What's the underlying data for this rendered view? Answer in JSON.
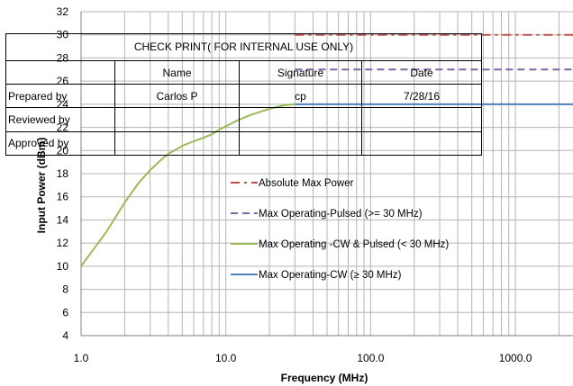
{
  "chart_data": {
    "type": "line",
    "xlabel": "Frequency (MHz)",
    "ylabel": "Input Power (dBm)",
    "x_scale": "log",
    "xlim": [
      1,
      2500
    ],
    "ylim": [
      4,
      32
    ],
    "x_ticks": [
      "1.0",
      "10.0",
      "100.0",
      "1000.0"
    ],
    "y_ticks": [
      "4",
      "6",
      "8",
      "10",
      "12",
      "14",
      "16",
      "18",
      "20",
      "22",
      "24",
      "26",
      "28",
      "30",
      "32"
    ],
    "grid": true,
    "legend_position": "center-right",
    "series": [
      {
        "name": "Absolute Max Power",
        "color": "#C0504D",
        "style": "dash-dot",
        "x": [
          30,
          2500
        ],
        "y": [
          30,
          30
        ]
      },
      {
        "name": "Max Operating-Pulsed (>= 30 MHz)",
        "color": "#8064A2",
        "style": "dash",
        "x": [
          30,
          2500
        ],
        "y": [
          27,
          27
        ]
      },
      {
        "name": "Max Operating -CW & Pulsed (< 30 MHz)",
        "color": "#9BBB59",
        "style": "solid",
        "x": [
          1,
          1.5,
          2,
          2.5,
          3,
          3.5,
          4,
          5,
          6,
          7,
          8,
          9,
          10,
          12,
          15,
          20,
          25,
          30
        ],
        "y": [
          10,
          13,
          15.5,
          17.2,
          18.3,
          19.1,
          19.7,
          20.4,
          20.8,
          21.1,
          21.4,
          21.8,
          22.1,
          22.6,
          23.1,
          23.6,
          23.9,
          24
        ]
      },
      {
        "name": "Max Operating-CW (≥ 30 MHz)",
        "color": "#4F81BD",
        "style": "solid",
        "x": [
          30,
          2500
        ],
        "y": [
          24,
          24
        ]
      }
    ]
  },
  "stamp": {
    "title": "CHECK PRINT( FOR INTERNAL USE ONLY)",
    "headers": [
      "Name",
      "Signature",
      "Date"
    ],
    "rows": [
      {
        "label": "Prepared by",
        "name": "Carlos P",
        "signature": "cp",
        "date": "7/28/16"
      },
      {
        "label": "Reviewed by",
        "name": "",
        "signature": "",
        "date": ""
      },
      {
        "label": "Approved by",
        "name": "",
        "signature": "",
        "date": ""
      }
    ]
  }
}
